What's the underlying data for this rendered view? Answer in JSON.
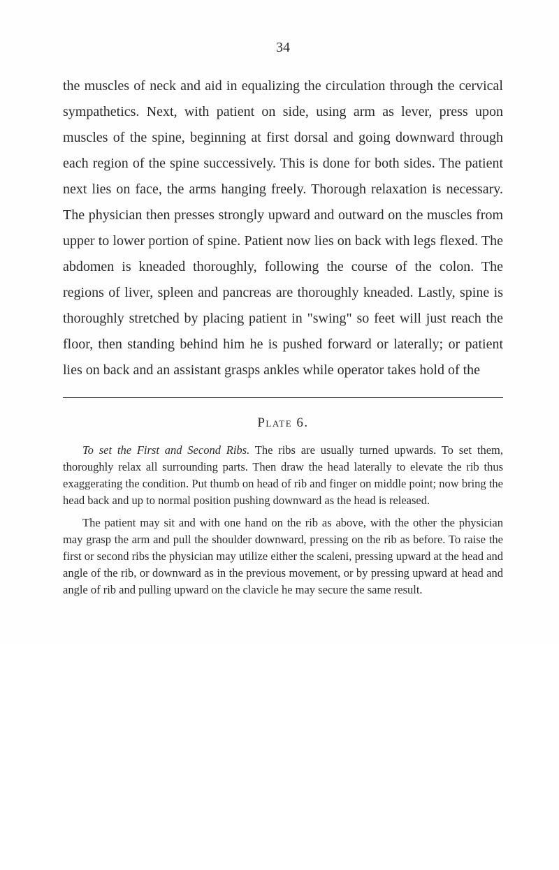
{
  "page_number": "34",
  "body_paragraph": "the muscles of neck and aid in equalizing the circulation through the cervical sympathetics. Next, with patient on side, using arm as lever, press upon muscles of the spine, beginning at first dorsal and going downward through each region of the spine successively. This is done for both sides. The patient next lies on face, the arms hanging freely. Thorough relaxation is necessary. The physician then presses strongly upward and outward on the muscles from upper to lower portion of spine. Patient now lies on back with legs flexed. The abdomen is kneaded thoroughly, following the course of the colon. The regions of liver, spleen and pancreas are thoroughly kneaded. Lastly, spine is thoroughly stretched by placing patient in \"swing\" so feet will just reach the floor, then standing behind him he is pushed forward or laterally; or patient lies on back and an assistant grasps ankles while operator takes hold of the",
  "plate_heading": "Plate 6.",
  "caption_p1_italic": "To set the First and Second Ribs.",
  "caption_p1_rest": " The ribs are usually turned upwards. To set them, thoroughly relax all surrounding parts. Then draw the head laterally to elevate the rib thus exaggerating the condition. Put thumb on head of rib and finger on middle point; now bring the head back and up to normal position pushing downward as the head is released.",
  "caption_p2": "The patient may sit and with one hand on the rib as above, with the other the physician may grasp the arm and pull the shoulder downward, pressing on the rib as before. To raise the first or second ribs the physician may utilize either the scaleni, pressing upward at the head and angle of the rib, or downward as in the previous movement, or by pressing upward at head and angle of rib and pulling upward on the clavicle he may secure the same result."
}
